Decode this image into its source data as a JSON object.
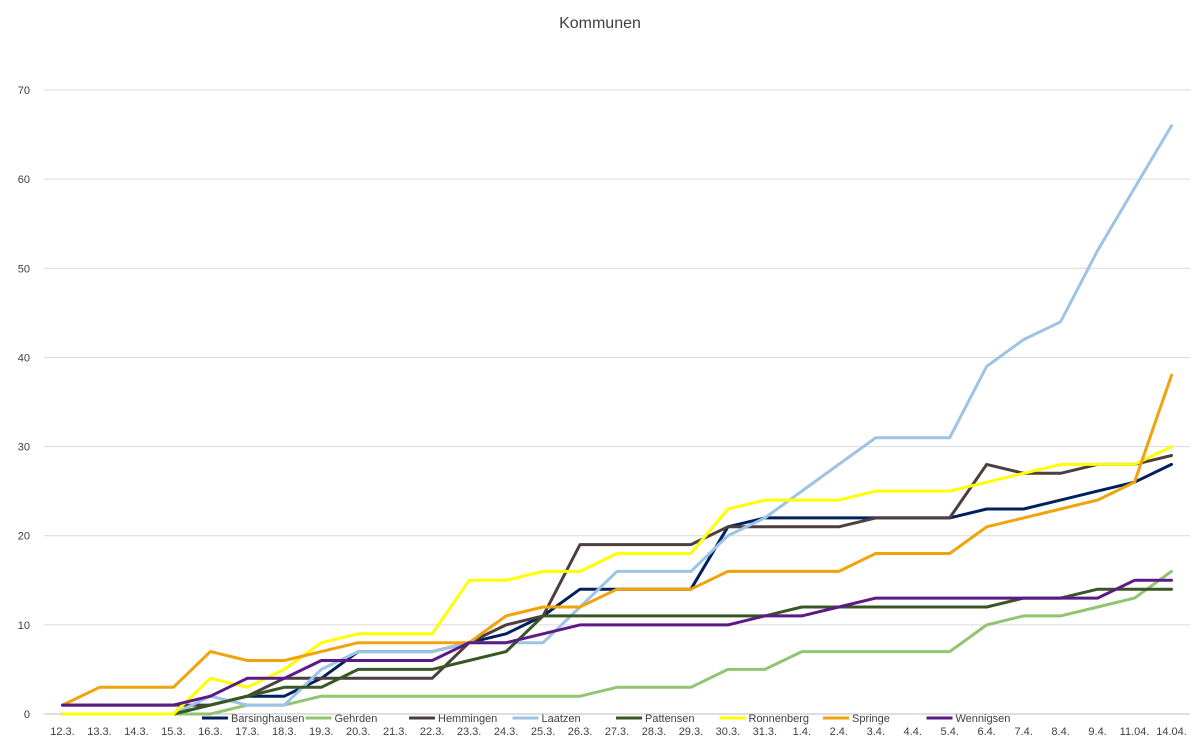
{
  "chart_data": {
    "type": "line",
    "title": "Kommunen",
    "xlabel": "",
    "ylabel": "",
    "ylim": [
      0,
      70
    ],
    "yticks": [
      0,
      10,
      20,
      30,
      40,
      50,
      60,
      70
    ],
    "grid": true,
    "legend_position": "bottom",
    "categories": [
      "12.3.",
      "13.3.",
      "14.3.",
      "15.3.",
      "16.3.",
      "17.3.",
      "18.3.",
      "19.3.",
      "20.3.",
      "21.3.",
      "22.3.",
      "23.3.",
      "24.3.",
      "25.3.",
      "26.3.",
      "27.3.",
      "28.3.",
      "29.3.",
      "30.3.",
      "31.3.",
      "1.4.",
      "2.4.",
      "3.4.",
      "4.4.",
      "5.4.",
      "6.4.",
      "7.4.",
      "8.4.",
      "9.4.",
      "11.04.",
      "14.04."
    ],
    "series": [
      {
        "name": "Barsinghausen",
        "color": "#002060",
        "values": [
          0,
          0,
          0,
          0,
          1,
          2,
          2,
          4,
          7,
          7,
          7,
          8,
          9,
          11,
          14,
          14,
          14,
          14,
          21,
          22,
          22,
          22,
          22,
          22,
          22,
          23,
          23,
          24,
          25,
          26,
          28
        ]
      },
      {
        "name": "Gehrden",
        "color": "#92c472",
        "values": [
          0,
          0,
          0,
          0,
          0,
          1,
          1,
          2,
          2,
          2,
          2,
          2,
          2,
          2,
          2,
          3,
          3,
          3,
          5,
          5,
          7,
          7,
          7,
          7,
          7,
          10,
          11,
          11,
          12,
          13,
          16
        ]
      },
      {
        "name": "Hemmingen",
        "color": "#4d3f3f",
        "values": [
          1,
          1,
          1,
          1,
          1,
          2,
          4,
          4,
          4,
          4,
          4,
          8,
          10,
          11,
          19,
          19,
          19,
          19,
          21,
          21,
          21,
          21,
          22,
          22,
          22,
          28,
          27,
          27,
          28,
          28,
          29
        ]
      },
      {
        "name": "Laatzen",
        "color": "#9dc3e6",
        "values": [
          0,
          0,
          0,
          0,
          2,
          1,
          1,
          5,
          7,
          7,
          7,
          8,
          8,
          8,
          12,
          16,
          16,
          16,
          20,
          22,
          25,
          28,
          31,
          31,
          31,
          39,
          42,
          44,
          52,
          59,
          66
        ]
      },
      {
        "name": "Pattensen",
        "color": "#385723",
        "values": [
          0,
          0,
          0,
          0,
          1,
          2,
          3,
          3,
          5,
          5,
          5,
          6,
          7,
          11,
          11,
          11,
          11,
          11,
          11,
          11,
          12,
          12,
          12,
          12,
          12,
          12,
          13,
          13,
          14,
          14,
          14
        ]
      },
      {
        "name": "Ronnenberg",
        "color": "#ffff00",
        "values": [
          0,
          0,
          0,
          0,
          4,
          3,
          5,
          8,
          9,
          9,
          9,
          15,
          15,
          16,
          16,
          18,
          18,
          18,
          23,
          24,
          24,
          24,
          25,
          25,
          25,
          26,
          27,
          28,
          28,
          28,
          30
        ]
      },
      {
        "name": "Springe",
        "color": "#f0a30a",
        "values": [
          1,
          3,
          3,
          3,
          7,
          6,
          6,
          7,
          8,
          8,
          8,
          8,
          11,
          12,
          12,
          14,
          14,
          14,
          16,
          16,
          16,
          16,
          18,
          18,
          18,
          21,
          22,
          23,
          24,
          26,
          38
        ]
      },
      {
        "name": "Wennigsen",
        "color": "#5b1a86",
        "values": [
          1,
          1,
          1,
          1,
          2,
          4,
          4,
          6,
          6,
          6,
          6,
          8,
          8,
          9,
          10,
          10,
          10,
          10,
          10,
          11,
          11,
          12,
          13,
          13,
          13,
          13,
          13,
          13,
          13,
          15,
          15
        ]
      }
    ]
  }
}
